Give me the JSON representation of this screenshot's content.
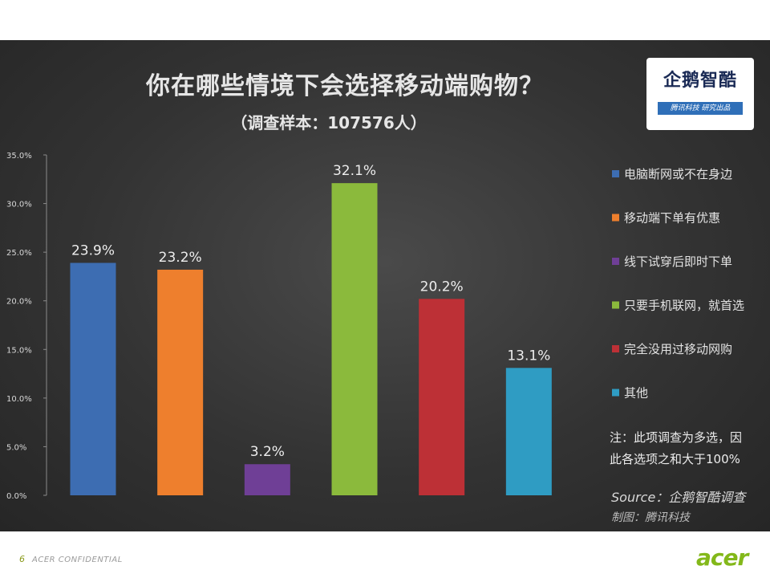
{
  "title": "你在哪些情境下会选择移动端购物？",
  "subtitle": "（调查样本：107576人）",
  "logo": {
    "name": "企鹅智酷",
    "tagline": "腾讯科技 研究出品"
  },
  "note": [
    "注：此项调查为多选，因",
    "此各选项之和大于100%"
  ],
  "source": "Source：企鹅智酷调查",
  "credit": "制图：腾讯科技",
  "footer": {
    "page_number": "6",
    "confidential": "ACER CONFIDENTIAL",
    "brand": "acer"
  },
  "chart_data": {
    "type": "bar",
    "title": "你在哪些情境下会选择移动端购物？",
    "subtitle": "（调查样本：107576人）",
    "categories": [
      "电脑断网或不在身边",
      "移动端下单有优惠",
      "线下试穿后即时下单",
      "只要手机联网，就首选",
      "完全没用过移动网购",
      "其他"
    ],
    "values": [
      23.9,
      23.2,
      3.2,
      32.1,
      20.2,
      13.1
    ],
    "value_labels": [
      "23.9%",
      "23.2%",
      "3.2%",
      "32.1%",
      "20.2%",
      "13.1%"
    ],
    "colors": [
      "#3d6db2",
      "#ee7f2d",
      "#6f3f96",
      "#8bba3c",
      "#bd3036",
      "#2f9cc3"
    ],
    "yticks": [
      "0.0%",
      "5.0%",
      "10.0%",
      "15.0%",
      "20.0%",
      "25.0%",
      "30.0%",
      "35.0%"
    ],
    "ylim": [
      0,
      35
    ],
    "legend_position": "right",
    "grid": false
  }
}
